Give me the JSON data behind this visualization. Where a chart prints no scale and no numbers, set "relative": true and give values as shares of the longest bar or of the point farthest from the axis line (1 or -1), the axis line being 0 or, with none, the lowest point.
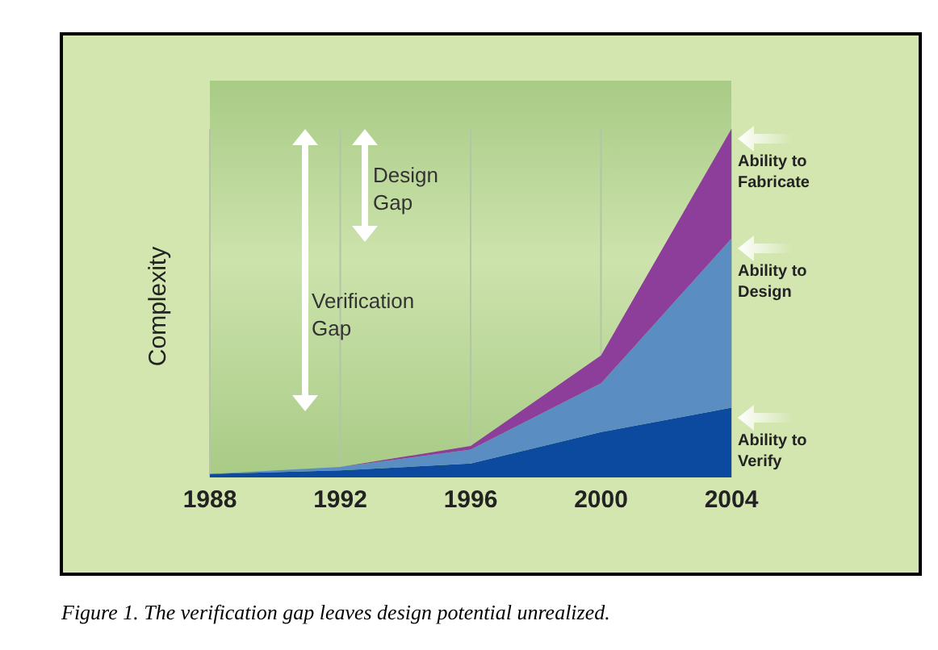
{
  "chart_data": {
    "type": "area",
    "stacked": true,
    "relative": true,
    "ylabel": "Complexity",
    "x": [
      1988,
      1992,
      1996,
      2000,
      2004
    ],
    "xlim": [
      1988,
      2004
    ],
    "xticks": [
      1988,
      1992,
      1996,
      2000,
      2004
    ],
    "grid": "x",
    "legend": "right",
    "series": [
      {
        "name": "Ability to Verify",
        "color": "#0b4a9e",
        "values": [
          0.01,
          0.02,
          0.04,
          0.13,
          0.2
        ]
      },
      {
        "name": "Ability to Design",
        "color": "#5a8ec2",
        "values": [
          0,
          0.01,
          0.04,
          0.14,
          0.485
        ]
      },
      {
        "name": "Ability to Fabricate",
        "color": "#8d3e9a",
        "values": [
          0,
          0,
          0.01,
          0.08,
          0.315
        ]
      }
    ],
    "annotations": [
      "Design Gap",
      "Verification Gap",
      "Figure 1. The verification gap leaves design potential unrealized."
    ]
  }
}
